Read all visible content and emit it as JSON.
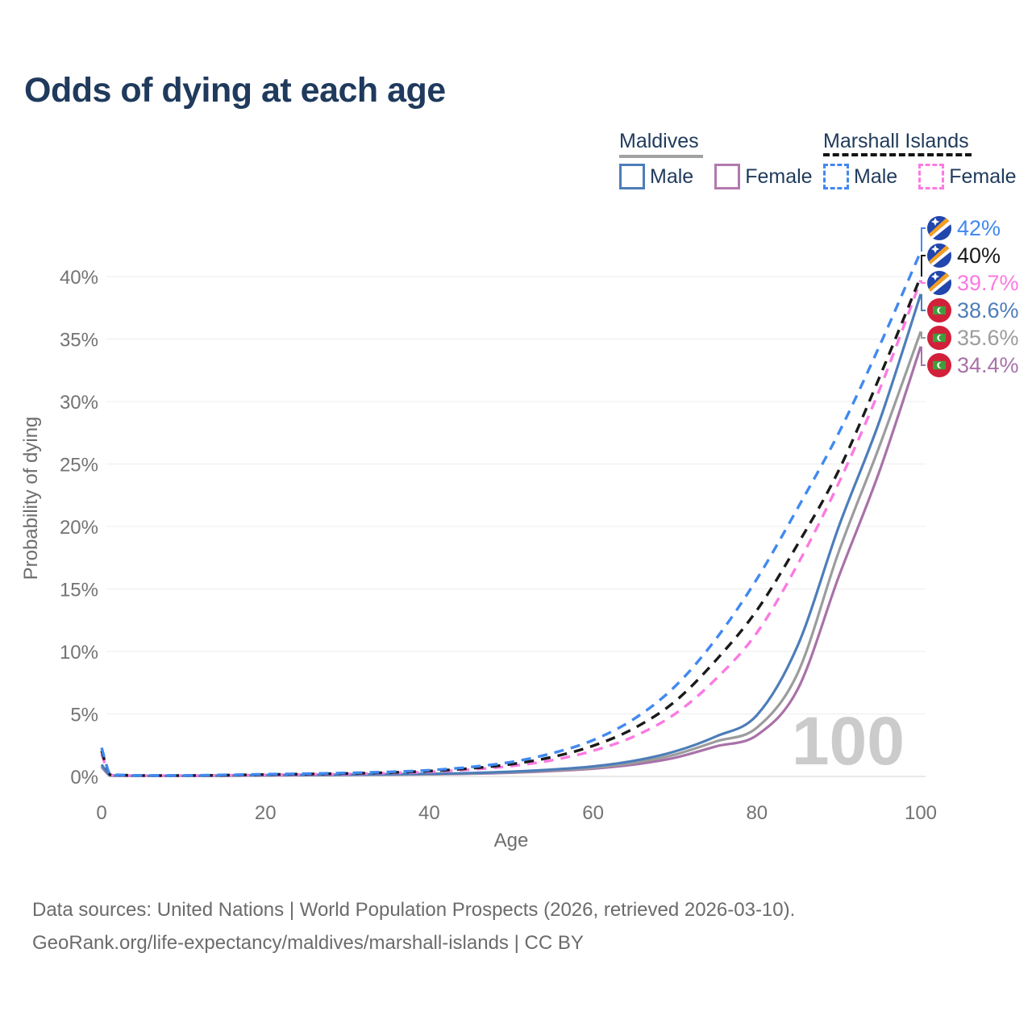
{
  "title": "Odds of dying at each age",
  "legend": {
    "groups": [
      {
        "name": "Maldives",
        "line_style": "solid",
        "line_color": "#a2a2a2",
        "items": [
          {
            "label": "Male",
            "color": "#4d7db9"
          },
          {
            "label": "Female",
            "color": "#b279ae"
          }
        ]
      },
      {
        "name": "Marshall Islands",
        "line_style": "dashed",
        "line_color": "#141414",
        "items": [
          {
            "label": "Male",
            "color": "#4189f0"
          },
          {
            "label": "Female",
            "color": "#fb7ae1"
          }
        ]
      }
    ]
  },
  "end_labels": [
    {
      "value": "42%",
      "color": "#4189f0",
      "series": "Marshall Islands Male",
      "flag": "marshall-islands"
    },
    {
      "value": "40%",
      "color": "#1a1a1a",
      "series": "Marshall Islands",
      "flag": "marshall-islands"
    },
    {
      "value": "39.7%",
      "color": "#fb7ae1",
      "series": "Marshall Islands Female",
      "flag": "marshall-islands"
    },
    {
      "value": "38.6%",
      "color": "#4d7db9",
      "series": "Maldives Male",
      "flag": "maldives"
    },
    {
      "value": "35.6%",
      "color": "#9c9c9c",
      "series": "Maldives",
      "flag": "maldives"
    },
    {
      "value": "34.4%",
      "color": "#a872a8",
      "series": "Maldives Female",
      "flag": "maldives"
    }
  ],
  "watermark": "100",
  "source_line1": "Data sources: United Nations | World Population Prospects (2026, retrieved 2026-03-10).",
  "source_line2": "GeoRank.org/life-expectancy/maldives/marshall-islands | CC BY",
  "chart_data": {
    "type": "line",
    "title": "Odds of dying at each age",
    "xlabel": "Age",
    "ylabel": "Probability of dying",
    "xlim": [
      0,
      100
    ],
    "ylim": [
      0,
      44
    ],
    "xticks": [
      0,
      20,
      40,
      60,
      80,
      100
    ],
    "yticks": [
      0,
      5,
      10,
      15,
      20,
      25,
      30,
      35,
      40
    ],
    "ytick_suffix": "%",
    "grid": true,
    "legend_position": "top-right",
    "x": [
      0,
      1,
      2,
      5,
      10,
      15,
      20,
      25,
      30,
      35,
      40,
      45,
      50,
      55,
      60,
      65,
      70,
      75,
      80,
      85,
      90,
      95,
      100
    ],
    "series": [
      {
        "name": "Maldives Female",
        "color": "#a872a8",
        "dash": false,
        "values": [
          0.75,
          0.08,
          0.06,
          0.04,
          0.04,
          0.055,
          0.08,
          0.1,
          0.12,
          0.14,
          0.17,
          0.21,
          0.3,
          0.43,
          0.62,
          0.95,
          1.5,
          2.4,
          3.3,
          7.0,
          16.0,
          24.5,
          34.4
        ]
      },
      {
        "name": "Maldives",
        "color": "#9c9c9c",
        "dash": false,
        "values": [
          0.85,
          0.09,
          0.065,
          0.045,
          0.045,
          0.06,
          0.09,
          0.11,
          0.13,
          0.15,
          0.19,
          0.24,
          0.34,
          0.49,
          0.7,
          1.1,
          1.75,
          2.8,
          3.9,
          8.3,
          18.0,
          26.5,
          35.6
        ]
      },
      {
        "name": "Maldives Male",
        "color": "#4d7db9",
        "dash": false,
        "values": [
          0.95,
          0.1,
          0.07,
          0.05,
          0.05,
          0.07,
          0.1,
          0.12,
          0.14,
          0.17,
          0.21,
          0.27,
          0.38,
          0.55,
          0.8,
          1.25,
          2.0,
          3.2,
          4.9,
          10.5,
          20.0,
          28.5,
          38.6
        ]
      },
      {
        "name": "Marshall Islands Female",
        "color": "#fb7ae1",
        "dash": true,
        "values": [
          1.8,
          0.14,
          0.1,
          0.06,
          0.06,
          0.09,
          0.12,
          0.16,
          0.2,
          0.27,
          0.37,
          0.55,
          0.83,
          1.3,
          2.05,
          3.2,
          5.0,
          7.8,
          11.5,
          17.0,
          23.5,
          31.0,
          39.7
        ]
      },
      {
        "name": "Marshall Islands",
        "color": "#1a1a1a",
        "dash": true,
        "values": [
          2.05,
          0.16,
          0.11,
          0.07,
          0.07,
          0.1,
          0.15,
          0.19,
          0.24,
          0.31,
          0.43,
          0.64,
          0.98,
          1.55,
          2.45,
          3.85,
          6.0,
          9.3,
          13.3,
          18.6,
          24.5,
          32.0,
          40.0
        ]
      },
      {
        "name": "Marshall Islands Male",
        "color": "#4189f0",
        "dash": true,
        "values": [
          2.3,
          0.18,
          0.12,
          0.08,
          0.08,
          0.12,
          0.18,
          0.22,
          0.28,
          0.36,
          0.5,
          0.75,
          1.15,
          1.85,
          2.9,
          4.6,
          7.2,
          11.0,
          15.8,
          21.5,
          27.5,
          34.5,
          42.0
        ]
      }
    ]
  }
}
